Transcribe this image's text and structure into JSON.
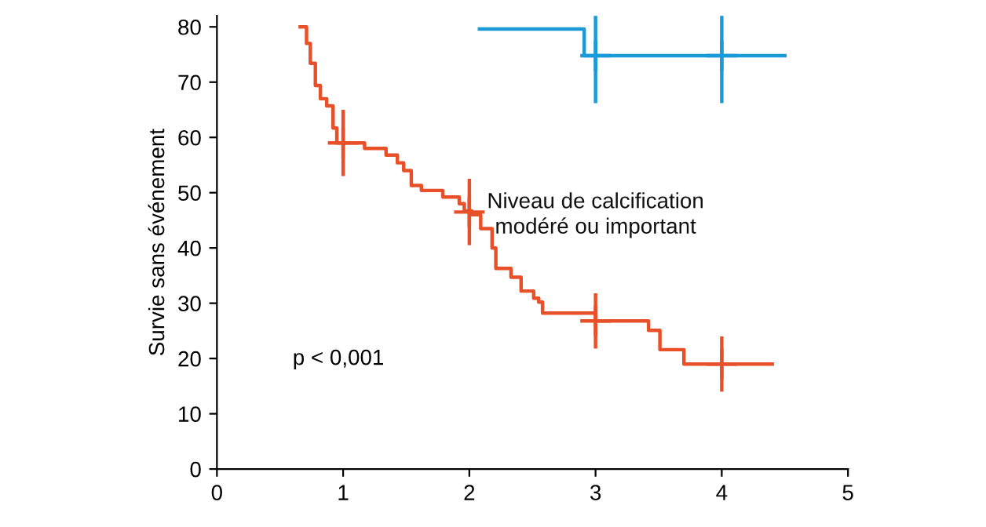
{
  "chart_data": {
    "type": "step",
    "ylabel": "Survie sans événement",
    "xlim": [
      0,
      5
    ],
    "xticks": [
      0,
      1,
      2,
      3,
      4,
      5
    ],
    "ylim": [
      0,
      82
    ],
    "yticks": [
      0,
      10,
      20,
      30,
      40,
      50,
      60,
      70,
      80
    ],
    "grid": false,
    "legend": false,
    "marker": "none",
    "line_style": "solid",
    "series": [
      {
        "name": "Niveau de calcification\nmodéré ou important",
        "color": "#e8502a",
        "x": [
          0.66,
          0.71,
          0.74,
          0.78,
          0.82,
          0.87,
          0.92,
          0.95,
          1.17,
          1.34,
          1.43,
          1.48,
          1.54,
          1.62,
          1.79,
          1.92,
          1.96,
          2.02,
          2.09,
          2.18,
          2.21,
          2.33,
          2.41,
          2.51,
          2.55,
          2.58,
          3.0,
          3.42,
          3.51,
          3.7,
          4.4
        ],
        "values": [
          80,
          77,
          73.4,
          69.4,
          67,
          65.7,
          61.7,
          59,
          58,
          56.8,
          55.4,
          54,
          51.3,
          50.4,
          49.2,
          48,
          46.7,
          46,
          43.5,
          40,
          36.3,
          34.7,
          32.2,
          30.9,
          30.2,
          28.2,
          26.8,
          25.1,
          21.6,
          19,
          19
        ]
      },
      {
        "color": "#1a9ad6",
        "x": [
          2.08,
          2.91,
          4.5
        ],
        "values": [
          79.6,
          74.8,
          74.8
        ]
      },
      {
        "type": "scatter",
        "marker": "cross",
        "color": "#e8502a",
        "x": [
          1,
          2,
          3,
          4
        ],
        "values": [
          59,
          46.5,
          26.8,
          19
        ],
        "errors": [
          6,
          6,
          5,
          5
        ]
      },
      {
        "type": "scatter",
        "marker": "cross",
        "color": "#1a9ad6",
        "x": [
          3,
          4
        ],
        "values": [
          74.8,
          74.8
        ],
        "errors": [
          8.6,
          8.6
        ]
      }
    ],
    "annotations": [
      "p < 0,001"
    ]
  }
}
